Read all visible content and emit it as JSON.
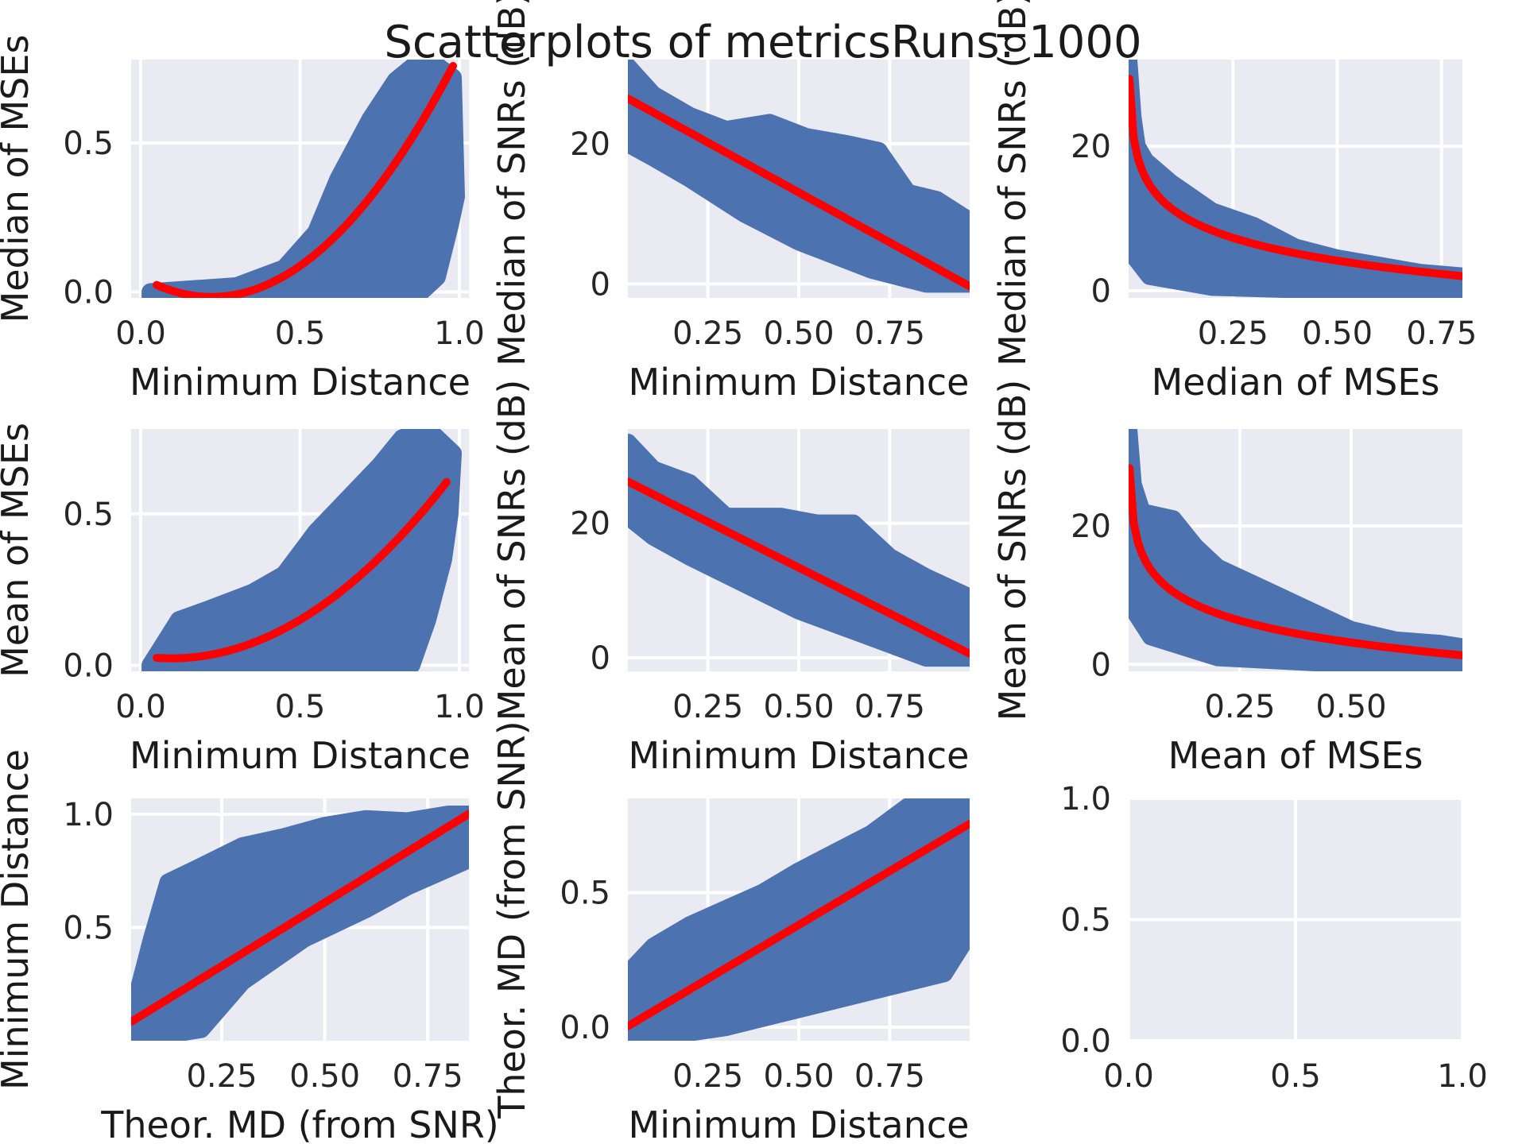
{
  "title": "Scatterplots of metricsRuns: 1000",
  "colors": {
    "panel_bg": "#eaeaf2",
    "scatter": "#4c72b0",
    "fit_line": "#ff0000",
    "grid": "#ffffff"
  },
  "chart_data": [
    {
      "type": "scatter",
      "xlabel": "Minimum Distance",
      "ylabel": "Median of MSEs",
      "xlim": [
        -0.03,
        1.03
      ],
      "ylim": [
        -0.02,
        0.78
      ],
      "xticks": [
        0.0,
        0.5,
        1.0
      ],
      "xtick_labels": [
        "0.0",
        "0.5",
        "1.0"
      ],
      "yticks": [
        0.0,
        0.5
      ],
      "ytick_labels": [
        "0.0",
        "0.5"
      ],
      "cloud": [
        [
          0.03,
          0.0
        ],
        [
          0.3,
          0.02
        ],
        [
          0.45,
          0.08
        ],
        [
          0.55,
          0.2
        ],
        [
          0.62,
          0.38
        ],
        [
          0.72,
          0.58
        ],
        [
          0.8,
          0.71
        ],
        [
          0.88,
          0.78
        ],
        [
          0.93,
          0.76
        ],
        [
          0.98,
          0.72
        ],
        [
          0.99,
          0.32
        ],
        [
          0.97,
          0.22
        ],
        [
          0.93,
          0.05
        ],
        [
          0.88,
          0.0
        ],
        [
          0.6,
          -0.02
        ],
        [
          0.3,
          -0.02
        ],
        [
          0.03,
          -0.015
        ]
      ],
      "fit": {
        "kind": "poly",
        "coef": [
          0.05,
          -0.6,
          1.35
        ],
        "xrange": [
          0.05,
          0.98
        ]
      }
    },
    {
      "type": "scatter",
      "xlabel": "Minimum Distance",
      "ylabel": "Median of SNRs (dB)",
      "xlim": [
        0.03,
        0.97
      ],
      "ylim": [
        -2,
        32
      ],
      "xticks": [
        0.25,
        0.5,
        0.75
      ],
      "xtick_labels": [
        "0.25",
        "0.50",
        "0.75"
      ],
      "yticks": [
        0,
        20
      ],
      "ytick_labels": [
        "0",
        "20"
      ],
      "cloud": [
        [
          0.03,
          31
        ],
        [
          0.1,
          27
        ],
        [
          0.2,
          24
        ],
        [
          0.3,
          22
        ],
        [
          0.42,
          23
        ],
        [
          0.52,
          21
        ],
        [
          0.63,
          20
        ],
        [
          0.72,
          19
        ],
        [
          0.8,
          13
        ],
        [
          0.88,
          12
        ],
        [
          0.97,
          9
        ],
        [
          0.97,
          0
        ],
        [
          0.85,
          0
        ],
        [
          0.7,
          2
        ],
        [
          0.5,
          6
        ],
        [
          0.35,
          10
        ],
        [
          0.2,
          15
        ],
        [
          0.1,
          18
        ],
        [
          0.03,
          20
        ]
      ],
      "fit": {
        "kind": "linear",
        "coef": [
          27.3,
          -28.5
        ],
        "xrange": [
          0.03,
          0.97
        ]
      }
    },
    {
      "type": "scatter",
      "xlabel": "Median of MSEs",
      "ylabel": "Median of SNRs (dB)",
      "xlim": [
        0.0,
        0.8
      ],
      "ylim": [
        -1,
        32
      ],
      "xticks": [
        0.25,
        0.5,
        0.75
      ],
      "xtick_labels": [
        "0.25",
        "0.50",
        "0.75"
      ],
      "yticks": [
        0,
        20
      ],
      "ytick_labels": [
        "0",
        "20"
      ],
      "cloud": [
        [
          0.0,
          32
        ],
        [
          0.01,
          24
        ],
        [
          0.02,
          20
        ],
        [
          0.04,
          18
        ],
        [
          0.1,
          15
        ],
        [
          0.15,
          13
        ],
        [
          0.2,
          11
        ],
        [
          0.3,
          9
        ],
        [
          0.4,
          6
        ],
        [
          0.5,
          4.5
        ],
        [
          0.6,
          3.5
        ],
        [
          0.7,
          2.5
        ],
        [
          0.8,
          2
        ],
        [
          0.8,
          0
        ],
        [
          0.5,
          0
        ],
        [
          0.2,
          0.5
        ],
        [
          0.05,
          2
        ],
        [
          0.01,
          5
        ],
        [
          0.0,
          10
        ]
      ],
      "fit": {
        "kind": "log",
        "a": -10.5,
        "b": 1.0,
        "floor": 0.002,
        "xrange": [
          0.002,
          0.8
        ]
      }
    },
    {
      "type": "scatter",
      "xlabel": "Minimum Distance",
      "ylabel": "Mean of MSEs",
      "xlim": [
        -0.03,
        1.03
      ],
      "ylim": [
        -0.02,
        0.78
      ],
      "xticks": [
        0.0,
        0.5,
        1.0
      ],
      "xtick_labels": [
        "0.0",
        "0.5",
        "1.0"
      ],
      "yticks": [
        0.0,
        0.5
      ],
      "ytick_labels": [
        "0.0",
        "0.5"
      ],
      "cloud": [
        [
          0.03,
          0.0
        ],
        [
          0.12,
          0.15
        ],
        [
          0.2,
          0.18
        ],
        [
          0.35,
          0.24
        ],
        [
          0.45,
          0.3
        ],
        [
          0.55,
          0.44
        ],
        [
          0.65,
          0.55
        ],
        [
          0.75,
          0.66
        ],
        [
          0.82,
          0.75
        ],
        [
          0.9,
          0.78
        ],
        [
          0.98,
          0.7
        ],
        [
          0.97,
          0.5
        ],
        [
          0.95,
          0.35
        ],
        [
          0.9,
          0.15
        ],
        [
          0.85,
          0.0
        ],
        [
          0.5,
          -0.02
        ],
        [
          0.2,
          -0.02
        ],
        [
          0.03,
          -0.015
        ]
      ],
      "fit": {
        "kind": "poly",
        "coef": [
          0.03,
          -0.15,
          0.78
        ],
        "xrange": [
          0.05,
          0.96
        ]
      }
    },
    {
      "type": "scatter",
      "xlabel": "Minimum Distance",
      "ylabel": "Mean of SNRs (dB)",
      "xlim": [
        0.03,
        0.97
      ],
      "ylim": [
        -2,
        34
      ],
      "xticks": [
        0.25,
        0.5,
        0.75
      ],
      "xtick_labels": [
        "0.25",
        "0.50",
        "0.75"
      ],
      "yticks": [
        0,
        20
      ],
      "ytick_labels": [
        "0",
        "20"
      ],
      "cloud": [
        [
          0.03,
          32
        ],
        [
          0.1,
          28
        ],
        [
          0.2,
          26
        ],
        [
          0.3,
          21
        ],
        [
          0.45,
          21
        ],
        [
          0.55,
          20
        ],
        [
          0.65,
          20
        ],
        [
          0.75,
          15
        ],
        [
          0.85,
          12
        ],
        [
          0.97,
          9
        ],
        [
          0.97,
          0
        ],
        [
          0.85,
          0
        ],
        [
          0.7,
          3
        ],
        [
          0.5,
          7
        ],
        [
          0.35,
          11
        ],
        [
          0.2,
          15
        ],
        [
          0.1,
          18
        ],
        [
          0.03,
          21
        ]
      ],
      "fit": {
        "kind": "linear",
        "coef": [
          27.0,
          -27.2
        ],
        "xrange": [
          0.03,
          0.97
        ]
      }
    },
    {
      "type": "scatter",
      "xlabel": "Mean of MSEs",
      "ylabel": "Mean of SNRs (dB)",
      "xlim": [
        0.0,
        0.75
      ],
      "ylim": [
        -1,
        34
      ],
      "xticks": [
        0.25,
        0.5
      ],
      "xtick_labels": [
        "0.25",
        "0.50"
      ],
      "yticks": [
        0,
        20
      ],
      "ytick_labels": [
        "0",
        "20"
      ],
      "cloud": [
        [
          0.0,
          34
        ],
        [
          0.01,
          26
        ],
        [
          0.03,
          22
        ],
        [
          0.1,
          21
        ],
        [
          0.15,
          17
        ],
        [
          0.2,
          14
        ],
        [
          0.3,
          11
        ],
        [
          0.4,
          8
        ],
        [
          0.5,
          5
        ],
        [
          0.6,
          3.5
        ],
        [
          0.7,
          3
        ],
        [
          0.75,
          2.5
        ],
        [
          0.75,
          0
        ],
        [
          0.5,
          0
        ],
        [
          0.2,
          1
        ],
        [
          0.05,
          4
        ],
        [
          0.01,
          8
        ],
        [
          0.0,
          14
        ]
      ],
      "fit": {
        "kind": "log",
        "a": -10.5,
        "b": 0.0,
        "floor": 0.002,
        "xrange": [
          0.002,
          0.75
        ]
      }
    },
    {
      "type": "scatter",
      "xlabel": "Theor. MD (from SNR)",
      "ylabel": "Minimum Distance",
      "xlim": [
        0.03,
        0.85
      ],
      "ylim": [
        0.0,
        1.07
      ],
      "xticks": [
        0.25,
        0.5,
        0.75
      ],
      "xtick_labels": [
        "0.25",
        "0.50",
        "0.75"
      ],
      "yticks": [
        0.5,
        1.0
      ],
      "ytick_labels": [
        "0.5",
        "1.0"
      ],
      "cloud": [
        [
          0.03,
          0.1
        ],
        [
          0.08,
          0.45
        ],
        [
          0.12,
          0.7
        ],
        [
          0.2,
          0.77
        ],
        [
          0.3,
          0.86
        ],
        [
          0.4,
          0.9
        ],
        [
          0.5,
          0.95
        ],
        [
          0.6,
          0.98
        ],
        [
          0.7,
          0.97
        ],
        [
          0.8,
          1.0
        ],
        [
          0.85,
          1.0
        ],
        [
          0.85,
          0.8
        ],
        [
          0.7,
          0.68
        ],
        [
          0.6,
          0.58
        ],
        [
          0.45,
          0.45
        ],
        [
          0.3,
          0.26
        ],
        [
          0.2,
          0.05
        ],
        [
          0.03,
          0.0
        ]
      ],
      "fit": {
        "kind": "linear",
        "coef": [
          0.05,
          1.12
        ],
        "xrange": [
          0.03,
          0.85
        ]
      }
    },
    {
      "type": "scatter",
      "xlabel": "Minimum Distance",
      "ylabel": "Theor. MD (from SNR)",
      "xlim": [
        0.03,
        0.97
      ],
      "ylim": [
        -0.05,
        0.85
      ],
      "xticks": [
        0.25,
        0.5,
        0.75
      ],
      "xtick_labels": [
        "0.25",
        "0.50",
        "0.75"
      ],
      "yticks": [
        0.0,
        0.5
      ],
      "ytick_labels": [
        "0.0",
        "0.5"
      ],
      "cloud": [
        [
          0.03,
          0.2
        ],
        [
          0.1,
          0.3
        ],
        [
          0.2,
          0.38
        ],
        [
          0.3,
          0.44
        ],
        [
          0.4,
          0.5
        ],
        [
          0.5,
          0.58
        ],
        [
          0.6,
          0.65
        ],
        [
          0.7,
          0.72
        ],
        [
          0.8,
          0.82
        ],
        [
          0.97,
          0.85
        ],
        [
          0.97,
          0.35
        ],
        [
          0.9,
          0.2
        ],
        [
          0.75,
          0.15
        ],
        [
          0.6,
          0.1
        ],
        [
          0.45,
          0.05
        ],
        [
          0.3,
          0.0
        ],
        [
          0.15,
          -0.03
        ],
        [
          0.03,
          -0.04
        ]
      ],
      "fit": {
        "kind": "linear",
        "coef": [
          -0.02,
          0.8
        ],
        "xrange": [
          0.03,
          0.97
        ]
      }
    },
    {
      "type": "scatter",
      "xlabel": "",
      "ylabel": "",
      "xlim": [
        0.0,
        1.0
      ],
      "ylim": [
        0.0,
        1.0
      ],
      "xticks": [
        0.0,
        0.5,
        1.0
      ],
      "xtick_labels": [
        "0.0",
        "0.5",
        "1.0"
      ],
      "yticks": [
        0.0,
        0.5,
        1.0
      ],
      "ytick_labels": [
        "0.0",
        "0.5",
        "1.0"
      ],
      "cloud": [],
      "fit": null
    }
  ]
}
